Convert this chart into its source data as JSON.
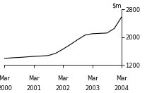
{
  "title": "",
  "ylim": [
    1200,
    2800
  ],
  "yticks": [
    1200,
    2000,
    2800
  ],
  "xlabel_pairs": [
    [
      "Mar",
      "2000"
    ],
    [
      "Mar",
      "2001"
    ],
    [
      "Mar",
      "2002"
    ],
    [
      "Mar",
      "2003"
    ],
    [
      "Mar",
      "2004"
    ]
  ],
  "x_values": [
    0,
    1,
    2,
    3,
    4,
    5,
    6,
    7,
    8,
    9,
    10,
    11,
    12,
    13,
    14,
    15,
    16
  ],
  "y_values": [
    1390,
    1410,
    1420,
    1435,
    1450,
    1460,
    1475,
    1540,
    1660,
    1790,
    1930,
    2060,
    2100,
    2110,
    2120,
    2250,
    2580
  ],
  "line_color": "#000000",
  "line_width": 0.8,
  "background_color": "#ffffff",
  "tick_label_fontsize": 6.0,
  "ylabel_fontsize": 6.0
}
